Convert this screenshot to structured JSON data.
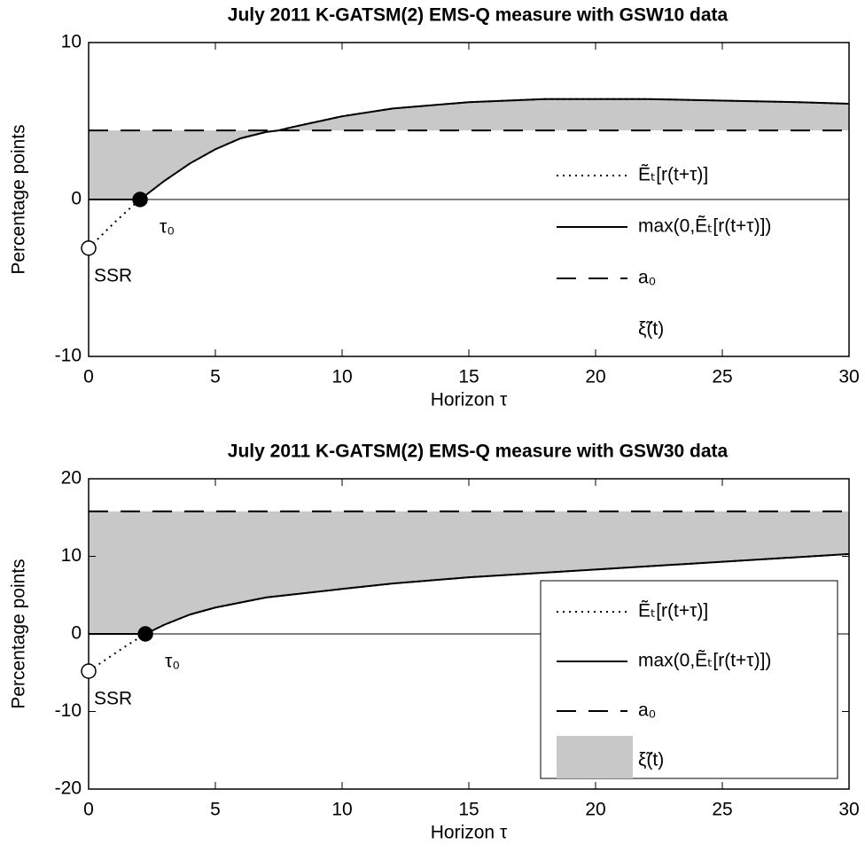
{
  "chart_data": [
    {
      "type": "line",
      "title": "July 2011 K-GATSM(2) EMS-Q measure with GSW10 data",
      "xlabel": "Horizon τ",
      "ylabel": "Percentage points",
      "x": [
        0,
        0.5,
        1,
        1.5,
        2.03,
        3,
        4,
        5,
        6,
        7,
        7.5,
        8,
        10,
        12,
        15,
        18,
        20,
        22,
        25,
        28,
        30
      ],
      "series": [
        {
          "name": "Ẽₜ[r(t+τ)]",
          "color": "#000000",
          "style": "dotted",
          "values": [
            -3.1,
            -2.3,
            -1.5,
            -0.75,
            0,
            1.2,
            2.3,
            3.2,
            3.9,
            4.3,
            4.4,
            4.6,
            5.3,
            5.8,
            6.2,
            6.4,
            6.4,
            6.4,
            6.3,
            6.2,
            6.1
          ]
        },
        {
          "name": "max(0,Ẽₜ[r(t+τ)])",
          "color": "#000000",
          "style": "solid",
          "values": [
            0,
            0,
            0,
            0,
            0,
            1.2,
            2.3,
            3.2,
            3.9,
            4.3,
            4.4,
            4.6,
            5.3,
            5.8,
            6.2,
            6.4,
            6.4,
            6.4,
            6.3,
            6.2,
            6.1
          ]
        },
        {
          "name": "a₀",
          "color": "#000000",
          "style": "dashed",
          "values": [
            4.4,
            4.4,
            4.4,
            4.4,
            4.4,
            4.4,
            4.4,
            4.4,
            4.4,
            4.4,
            4.4,
            4.4,
            4.4,
            4.4,
            4.4,
            4.4,
            4.4,
            4.4,
            4.4,
            4.4,
            4.4
          ]
        },
        {
          "name": "ξ̃(t)",
          "color": "#c8c8c8",
          "style": "fill"
        }
      ],
      "annotations": [
        {
          "text": "SSR",
          "x": 0,
          "y": -3.1,
          "marker": "open"
        },
        {
          "text": "τ₀",
          "x": 2.03,
          "y": 0,
          "marker": "filled"
        }
      ],
      "xlim": [
        0,
        30
      ],
      "xticks": [
        0,
        5,
        10,
        15,
        20,
        25,
        30
      ],
      "ylim": [
        -10,
        10
      ],
      "yticks": [
        -10,
        0,
        10
      ],
      "zero_line": true,
      "legend": "right",
      "legend_box": false
    },
    {
      "type": "line",
      "title": "July 2011 K-GATSM(2) EMS-Q measure with GSW30 data",
      "xlabel": "Horizon τ",
      "ylabel": "Percentage points",
      "x": [
        0,
        0.5,
        1,
        1.5,
        2.24,
        3,
        4,
        5,
        7,
        10,
        12,
        15,
        18,
        20,
        25,
        30
      ],
      "series": [
        {
          "name": "Ẽₜ[r(t+τ)]",
          "color": "#000000",
          "style": "dotted",
          "values": [
            -4.8,
            -3.7,
            -2.6,
            -1.5,
            0,
            1.2,
            2.5,
            3.4,
            4.7,
            5.8,
            6.5,
            7.3,
            7.9,
            8.3,
            9.3,
            10.3
          ]
        },
        {
          "name": "max(0,Ẽₜ[r(t+τ)])",
          "color": "#000000",
          "style": "solid",
          "values": [
            0,
            0,
            0,
            0,
            0,
            1.2,
            2.5,
            3.4,
            4.7,
            5.8,
            6.5,
            7.3,
            7.9,
            8.3,
            9.3,
            10.3
          ]
        },
        {
          "name": "a₀",
          "color": "#000000",
          "style": "dashed",
          "values": [
            15.8,
            15.8,
            15.8,
            15.8,
            15.8,
            15.8,
            15.8,
            15.8,
            15.8,
            15.8,
            15.8,
            15.8,
            15.8,
            15.8,
            15.8,
            15.8
          ]
        },
        {
          "name": "ξ̃(t)",
          "color": "#c8c8c8",
          "style": "fill"
        }
      ],
      "annotations": [
        {
          "text": "SSR",
          "x": 0,
          "y": -4.8,
          "marker": "open"
        },
        {
          "text": "τ₀",
          "x": 2.24,
          "y": 0,
          "marker": "filled"
        }
      ],
      "xlim": [
        0,
        30
      ],
      "xticks": [
        0,
        5,
        10,
        15,
        20,
        25,
        30
      ],
      "ylim": [
        -20,
        20
      ],
      "yticks": [
        -20,
        -10,
        0,
        10,
        20
      ],
      "zero_line": true,
      "legend": "lower right",
      "legend_box": true
    }
  ]
}
